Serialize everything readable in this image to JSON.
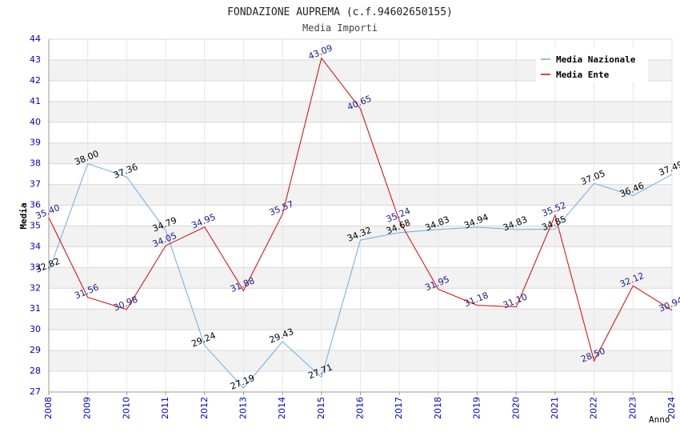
{
  "chart_data": {
    "type": "line",
    "title": "FONDAZIONE AUPREMA (c.f.94602650155)",
    "subtitle": "Media Importi",
    "xlabel": "Anno",
    "ylabel": "Media",
    "ylim": [
      27,
      44
    ],
    "y_ticks": [
      "27",
      "28",
      "29",
      "30",
      "31",
      "32",
      "33",
      "34",
      "35",
      "36",
      "37",
      "38",
      "39",
      "40",
      "41",
      "42",
      "43",
      "44"
    ],
    "categories": [
      "2008",
      "2009",
      "2010",
      "2011",
      "2012",
      "2013",
      "2014",
      "2015",
      "2016",
      "2017",
      "2018",
      "2019",
      "2020",
      "2021",
      "2022",
      "2023",
      "2024"
    ],
    "grid": true,
    "legend_position": "top-right",
    "series": [
      {
        "name": "Media Nazionale",
        "color": "#6aaee8",
        "label_color": "#000000",
        "values": [
          32.82,
          38.0,
          37.36,
          34.79,
          29.24,
          27.19,
          29.43,
          27.71,
          34.32,
          34.68,
          34.83,
          34.94,
          34.83,
          34.85,
          37.05,
          36.46,
          37.49
        ],
        "labels": [
          "32.82",
          "38.00",
          "37.36",
          "34.79",
          "29.24",
          "27.19",
          "29.43",
          "27.71",
          "34.32",
          "34.68",
          "34.83",
          "34.94",
          "34.83",
          "34.85",
          "37.05",
          "36.46",
          "37.49"
        ]
      },
      {
        "name": "Media Ente",
        "color": "#e00000",
        "label_color": "#1a1a8c",
        "values": [
          35.4,
          31.56,
          30.98,
          34.05,
          34.95,
          31.88,
          35.57,
          43.09,
          40.65,
          35.24,
          31.95,
          31.18,
          31.1,
          35.52,
          28.5,
          32.12,
          30.94
        ],
        "labels": [
          "35.40",
          "31.56",
          "30.98",
          "34.05",
          "34.95",
          "31.88",
          "35.57",
          "43.09",
          "40.65",
          "35.24",
          "31.95",
          "31.18",
          "31.10",
          "35.52",
          "28.50",
          "32.12",
          "30.94"
        ]
      }
    ]
  }
}
